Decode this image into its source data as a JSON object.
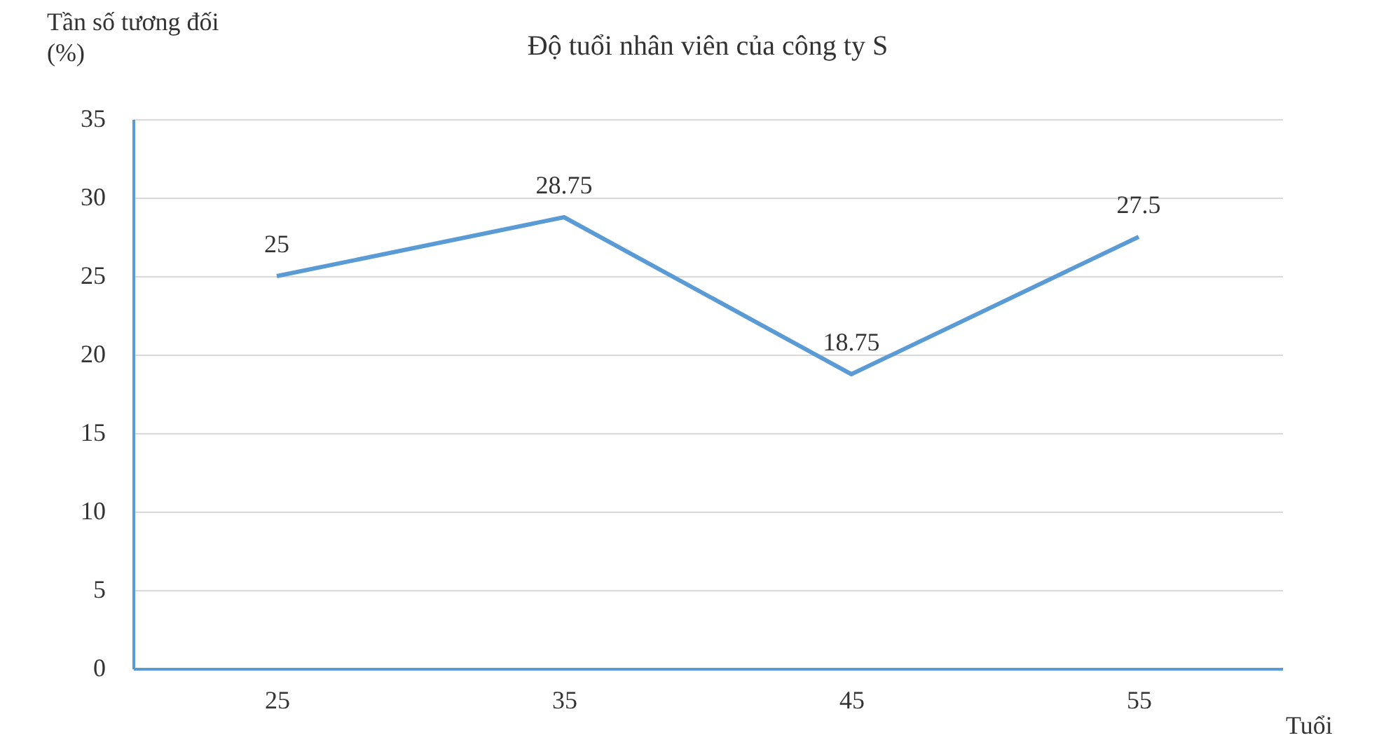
{
  "chart_data": {
    "type": "line",
    "title": "Độ tuổi nhân viên của công ty S",
    "xlabel": "Tuổi",
    "ylabel": "Tần số tương đối (%)",
    "categories": [
      "25",
      "35",
      "45",
      "55"
    ],
    "series": [
      {
        "color": "#5b9bd5",
        "values": [
          25,
          28.75,
          18.75,
          27.5
        ]
      }
    ],
    "ylim": [
      0,
      35
    ],
    "yticks": [
      0,
      5,
      10,
      15,
      20,
      25,
      30,
      35
    ],
    "grid": "y",
    "data_labels": true,
    "marker": "none",
    "line_style": "solid"
  }
}
